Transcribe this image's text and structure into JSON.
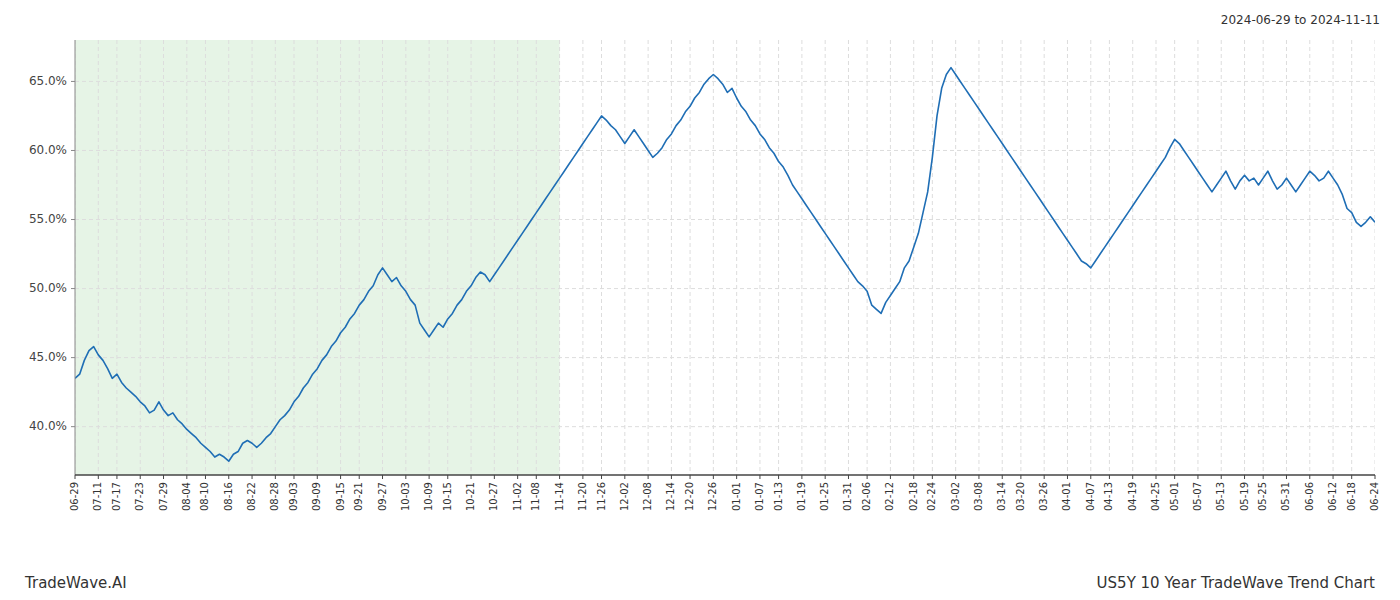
{
  "chart_data": {
    "type": "line",
    "title": "US5Y 10 Year TradeWave Trend Chart",
    "subtitle": "2024-06-29 to 2024-11-11",
    "annotations": [
      "TradeWave.AI"
    ],
    "color": "#1f6eb5",
    "grid": true,
    "shaded_range": {
      "from": "06-29",
      "to": "11-14",
      "color": "#c8e6c8"
    },
    "ylim": [
      36.5,
      68.0
    ],
    "yticks": [
      {
        "value": 40.0,
        "label": "40.0%"
      },
      {
        "value": 45.0,
        "label": "45.0%"
      },
      {
        "value": 50.0,
        "label": "50.0%"
      },
      {
        "value": 55.0,
        "label": "55.0%"
      },
      {
        "value": 60.0,
        "label": "60.0%"
      },
      {
        "value": 65.0,
        "label": "65.0%"
      }
    ],
    "categories": [
      "06-29",
      null,
      null,
      null,
      null,
      "07-11",
      null,
      null,
      null,
      "07-17",
      null,
      null,
      null,
      null,
      "07-23",
      null,
      null,
      null,
      null,
      "07-29",
      null,
      null,
      null,
      null,
      "08-04",
      null,
      null,
      null,
      "08-10",
      null,
      null,
      null,
      null,
      "08-16",
      null,
      null,
      null,
      null,
      "08-22",
      null,
      null,
      null,
      null,
      "08-28",
      null,
      null,
      null,
      "09-03",
      null,
      null,
      null,
      null,
      "09-09",
      null,
      null,
      null,
      null,
      "09-15",
      null,
      null,
      null,
      "09-21",
      null,
      null,
      null,
      null,
      "09-27",
      null,
      null,
      null,
      null,
      "10-03",
      null,
      null,
      null,
      null,
      "10-09",
      null,
      null,
      null,
      "10-15",
      null,
      null,
      null,
      null,
      "10-21",
      null,
      null,
      null,
      null,
      "10-27",
      null,
      null,
      null,
      null,
      "11-02",
      null,
      null,
      null,
      "11-08",
      null,
      null,
      null,
      null,
      "11-14",
      null,
      null,
      null,
      null,
      "11-20",
      null,
      null,
      null,
      "11-26",
      null,
      null,
      null,
      null,
      "12-02",
      null,
      null,
      null,
      null,
      "12-08",
      null,
      null,
      null,
      null,
      "12-14",
      null,
      null,
      null,
      "12-20",
      null,
      null,
      null,
      null,
      "12-26",
      null,
      null,
      null,
      null,
      "01-01",
      null,
      null,
      null,
      null,
      "01-07",
      null,
      null,
      null,
      "01-13",
      null,
      null,
      null,
      null,
      "01-19",
      null,
      null,
      null,
      null,
      "01-25",
      null,
      null,
      null,
      null,
      "01-31",
      null,
      null,
      null,
      "02-06",
      null,
      null,
      null,
      null,
      "02-12",
      null,
      null,
      null,
      null,
      "02-18",
      null,
      null,
      null,
      "02-24",
      null,
      null,
      null,
      null,
      "03-02",
      null,
      null,
      null,
      null,
      "03-08",
      null,
      null,
      null,
      null,
      "03-14",
      null,
      null,
      null,
      "03-20",
      null,
      null,
      null,
      null,
      "03-26",
      null,
      null,
      null,
      null,
      "04-01",
      null,
      null,
      null,
      null,
      "04-07",
      null,
      null,
      null,
      "04-13",
      null,
      null,
      null,
      null,
      "04-19",
      null,
      null,
      null,
      null,
      "04-25",
      null,
      null,
      null,
      "05-01",
      null,
      null,
      null,
      null,
      "05-07",
      null,
      null,
      null,
      null,
      "05-13",
      null,
      null,
      null,
      null,
      "05-19",
      null,
      null,
      null,
      "05-25",
      null,
      null,
      null,
      null,
      "05-31",
      null,
      null,
      null,
      null,
      "06-06",
      null,
      null,
      null,
      null,
      "06-12",
      null,
      null,
      null,
      "06-18",
      null,
      null,
      null,
      null,
      "06-24"
    ],
    "values": [
      43.5,
      43.8,
      44.8,
      45.5,
      45.8,
      45.2,
      44.8,
      44.2,
      43.5,
      43.8,
      43.2,
      42.8,
      42.5,
      42.2,
      41.8,
      41.5,
      41.0,
      41.2,
      41.8,
      41.2,
      40.8,
      41.0,
      40.5,
      40.2,
      39.8,
      39.5,
      39.2,
      38.8,
      38.5,
      38.2,
      37.8,
      38.0,
      37.8,
      37.5,
      38.0,
      38.2,
      38.8,
      39.0,
      38.8,
      38.5,
      38.8,
      39.2,
      39.5,
      40.0,
      40.5,
      40.8,
      41.2,
      41.8,
      42.2,
      42.8,
      43.2,
      43.8,
      44.2,
      44.8,
      45.2,
      45.8,
      46.2,
      46.8,
      47.2,
      47.8,
      48.2,
      48.8,
      49.2,
      49.8,
      50.2,
      51.0,
      51.5,
      51.0,
      50.5,
      50.8,
      50.2,
      49.8,
      49.2,
      48.8,
      47.5,
      47.0,
      46.5,
      47.0,
      47.5,
      47.2,
      47.8,
      48.2,
      48.8,
      49.2,
      49.8,
      50.2,
      50.8,
      51.2,
      51.0,
      50.5,
      51.0,
      51.5,
      52.0,
      52.5,
      53.0,
      53.5,
      54.0,
      54.5,
      55.0,
      55.5,
      56.0,
      56.5,
      57.0,
      57.5,
      58.0,
      58.5,
      59.0,
      59.5,
      60.0,
      60.5,
      61.0,
      61.5,
      62.0,
      62.5,
      62.2,
      61.8,
      61.5,
      61.0,
      60.5,
      61.0,
      61.5,
      61.0,
      60.5,
      60.0,
      59.5,
      59.8,
      60.2,
      60.8,
      61.2,
      61.8,
      62.2,
      62.8,
      63.2,
      63.8,
      64.2,
      64.8,
      65.2,
      65.5,
      65.2,
      64.8,
      64.2,
      64.5,
      63.8,
      63.2,
      62.8,
      62.2,
      61.8,
      61.2,
      60.8,
      60.2,
      59.8,
      59.2,
      58.8,
      58.2,
      57.5,
      57.0,
      56.5,
      56.0,
      55.5,
      55.0,
      54.5,
      54.0,
      53.5,
      53.0,
      52.5,
      52.0,
      51.5,
      51.0,
      50.5,
      50.2,
      49.8,
      48.8,
      48.5,
      48.2,
      49.0,
      49.5,
      50.0,
      50.5,
      51.5,
      52.0,
      53.0,
      54.0,
      55.5,
      57.0,
      59.5,
      62.5,
      64.5,
      65.5,
      66.0,
      65.5,
      65.0,
      64.5,
      64.0,
      63.5,
      63.0,
      62.5,
      62.0,
      61.5,
      61.0,
      60.5,
      60.0,
      59.5,
      59.0,
      58.5,
      58.0,
      57.5,
      57.0,
      56.5,
      56.0,
      55.5,
      55.0,
      54.5,
      54.0,
      53.5,
      53.0,
      52.5,
      52.0,
      51.8,
      51.5,
      52.0,
      52.5,
      53.0,
      53.5,
      54.0,
      54.5,
      55.0,
      55.5,
      56.0,
      56.5,
      57.0,
      57.5,
      58.0,
      58.5,
      59.0,
      59.5,
      60.2,
      60.8,
      60.5,
      60.0,
      59.5,
      59.0,
      58.5,
      58.0,
      57.5,
      57.0,
      57.5,
      58.0,
      58.5,
      57.8,
      57.2,
      57.8,
      58.2,
      57.8,
      58.0,
      57.5,
      58.0,
      58.5,
      57.8,
      57.2,
      57.5,
      58.0,
      57.5,
      57.0,
      57.5,
      58.0,
      58.5,
      58.2,
      57.8,
      58.0,
      58.5,
      58.0,
      57.5,
      56.8,
      55.8,
      55.5,
      54.8,
      54.5,
      54.8,
      55.2,
      54.8
    ]
  }
}
